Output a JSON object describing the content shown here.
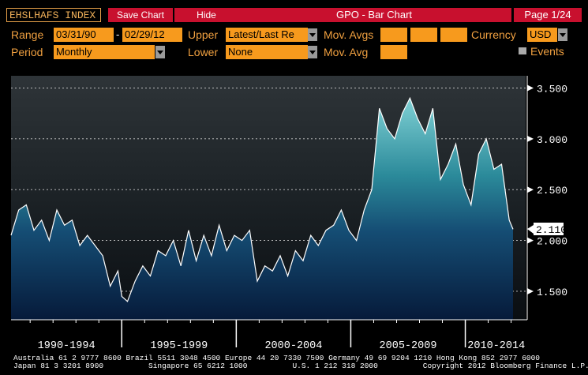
{
  "header": {
    "ticker": "EHSLHAFS INDEX",
    "save_chart_label": "Save Chart",
    "hide_label": "Hide",
    "title": "GPO - Bar Chart",
    "page": "Page 1/24"
  },
  "controls": {
    "range_label": "Range",
    "range_start": "03/31/90",
    "range_sep": "-",
    "range_end": "02/29/12",
    "upper_label": "Upper",
    "upper_value": "Latest/Last Re",
    "mov_avgs_label": "Mov. Avgs",
    "currency_label": "Currency",
    "currency_value": "USD",
    "period_label": "Period",
    "period_value": "Monthly",
    "lower_label": "Lower",
    "lower_value": "None",
    "mov_avg_label": "Mov. Avg",
    "events_label": "Events"
  },
  "colors": {
    "accent_orange": "#f79a1d",
    "label_orange": "#f0a040",
    "button_red": "#c8102e",
    "fill_top": "#7fd0d4",
    "fill_bottom": "#061a3a"
  },
  "chart_data": {
    "type": "area",
    "x_label_groups": [
      "1990-1994",
      "1995-1999",
      "2000-2004",
      "2005-2009",
      "2010-2014"
    ],
    "yticks": [
      "3.500",
      "3.000",
      "2.500",
      "2.000",
      "1.500"
    ],
    "ylim": [
      1.22,
      3.62
    ],
    "last_value_label": "2.110",
    "grid": true,
    "series": [
      {
        "x": [
          "1990-03",
          "1990-07",
          "1990-11",
          "1991-03",
          "1991-07",
          "1991-11",
          "1992-03",
          "1992-07",
          "1992-11",
          "1993-03",
          "1993-07",
          "1993-11",
          "1994-03",
          "1994-07",
          "1994-11",
          "1995-01",
          "1995-04",
          "1995-08",
          "1995-12",
          "1996-04",
          "1996-08",
          "1996-12",
          "1997-04",
          "1997-08",
          "1997-12",
          "1998-04",
          "1998-08",
          "1998-12",
          "1999-04",
          "1999-08",
          "1999-12",
          "2000-04",
          "2000-08",
          "2000-12",
          "2001-04",
          "2001-08",
          "2001-12",
          "2002-04",
          "2002-08",
          "2002-12",
          "2003-04",
          "2003-08",
          "2003-12",
          "2004-04",
          "2004-08",
          "2004-12",
          "2005-04",
          "2005-08",
          "2005-12",
          "2006-04",
          "2006-08",
          "2006-12",
          "2007-04",
          "2007-08",
          "2007-12",
          "2008-04",
          "2008-08",
          "2008-12",
          "2009-04",
          "2009-08",
          "2009-12",
          "2010-04",
          "2010-08",
          "2010-12",
          "2011-04",
          "2011-08",
          "2011-12",
          "2012-02"
        ],
        "values": [
          2.05,
          2.3,
          2.35,
          2.1,
          2.2,
          2.0,
          2.3,
          2.15,
          2.2,
          1.95,
          2.05,
          1.95,
          1.85,
          1.55,
          1.7,
          1.45,
          1.4,
          1.6,
          1.75,
          1.65,
          1.9,
          1.85,
          2.0,
          1.75,
          2.1,
          1.8,
          2.05,
          1.85,
          2.15,
          1.9,
          2.05,
          2.0,
          2.1,
          1.6,
          1.75,
          1.7,
          1.85,
          1.65,
          1.9,
          1.8,
          2.05,
          1.95,
          2.1,
          2.15,
          2.3,
          2.1,
          2.0,
          2.3,
          2.5,
          3.3,
          3.1,
          3.0,
          3.25,
          3.4,
          3.2,
          3.05,
          3.3,
          2.6,
          2.75,
          2.95,
          2.55,
          2.35,
          2.85,
          3.0,
          2.7,
          2.75,
          2.2,
          2.11
        ]
      }
    ]
  },
  "footer": {
    "line1": "Australia 61 2 9777 8600 Brazil 5511 3048 4500 Europe 44 20 7330 7500 Germany 49 69 9204 1210 Hong Kong 852 2977 6000",
    "line2": "Japan 81 3 3201 8900          Singapore 65 6212 1000          U.S. 1 212 318 2000          Copyright 2012 Bloomberg Finance L.P."
  }
}
